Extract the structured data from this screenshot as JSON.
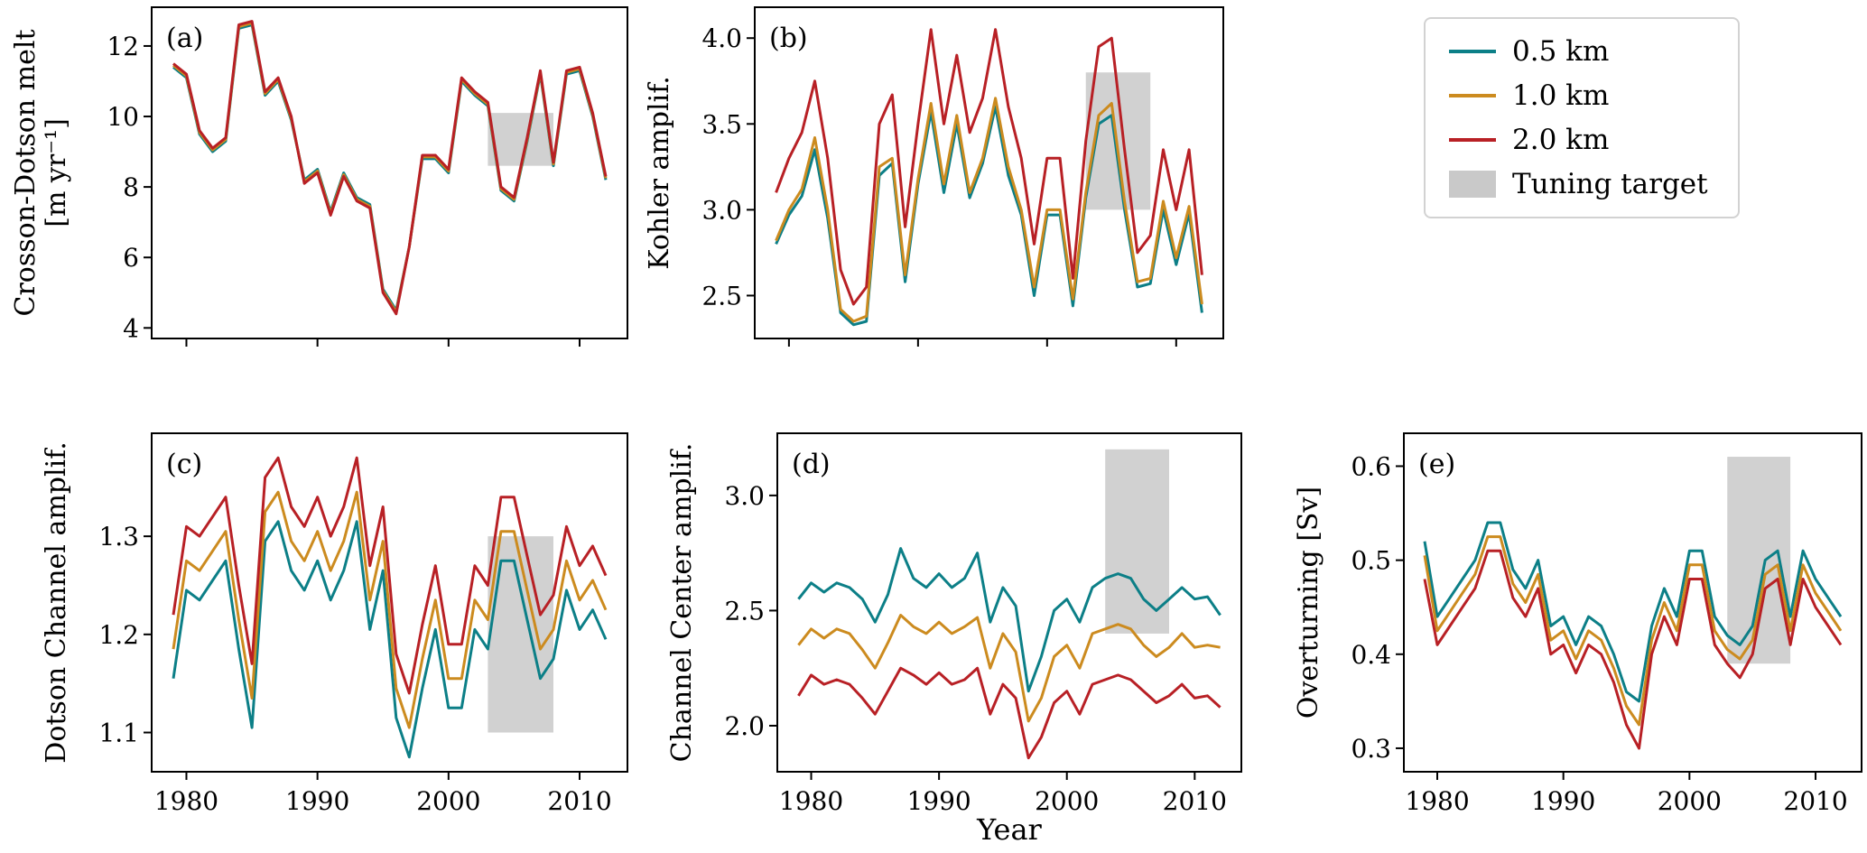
{
  "figure": {
    "xlabel": "Year",
    "background": "#ffffff",
    "legend": {
      "entries": [
        {
          "label": "0.5 km",
          "color": "#0c7f87"
        },
        {
          "label": "1.0 km",
          "color": "#cc8b1f"
        },
        {
          "label": "2.0 km",
          "color": "#b82025"
        }
      ],
      "tuning": {
        "label": "Tuning target",
        "color": "#c9c9c9"
      }
    }
  },
  "chart_data": [
    {
      "id": "a",
      "type": "line",
      "panel_label": "(a)",
      "ylabel_lines": [
        "Crosson-Dotson melt",
        "[m yr⁻¹]"
      ],
      "x": [
        1979,
        1980,
        1981,
        1982,
        1983,
        1984,
        1985,
        1986,
        1987,
        1988,
        1989,
        1990,
        1991,
        1992,
        1993,
        1994,
        1995,
        1996,
        1997,
        1998,
        1999,
        2000,
        2001,
        2002,
        2003,
        2004,
        2005,
        2006,
        2007,
        2008,
        2009,
        2010,
        2011,
        2012
      ],
      "xlim": [
        1977.35,
        2013.65
      ],
      "ylim": [
        3.7,
        13.1
      ],
      "xticks": [
        1980,
        1990,
        2000,
        2010
      ],
      "xtick_labels": [
        "1980",
        "1990",
        "2000",
        "2010"
      ],
      "xtick_labels_visible": false,
      "yticks": [
        4,
        6,
        8,
        10,
        12
      ],
      "ytick_labels": [
        "4",
        "6",
        "8",
        "10",
        "12"
      ],
      "series": [
        {
          "name": "0.5 km",
          "color": "#0c7f87",
          "values": [
            11.4,
            11.1,
            9.5,
            9.0,
            9.3,
            12.5,
            12.6,
            10.6,
            11.0,
            9.9,
            8.2,
            8.5,
            7.3,
            8.4,
            7.7,
            7.5,
            5.1,
            4.5,
            6.3,
            8.8,
            8.8,
            8.4,
            11.0,
            10.6,
            10.3,
            7.9,
            7.6,
            9.3,
            11.2,
            8.6,
            11.2,
            11.3,
            10.0,
            8.2
          ]
        },
        {
          "name": "1.0 km",
          "color": "#cc8b1f",
          "values": [
            11.45,
            11.15,
            9.55,
            9.05,
            9.35,
            12.55,
            12.65,
            10.65,
            11.05,
            9.95,
            8.15,
            8.45,
            7.25,
            8.35,
            7.65,
            7.45,
            5.05,
            4.45,
            6.3,
            8.85,
            8.85,
            8.45,
            11.05,
            10.65,
            10.35,
            7.95,
            7.65,
            9.35,
            11.25,
            8.65,
            11.25,
            11.35,
            10.05,
            8.25
          ]
        },
        {
          "name": "2.0 km",
          "color": "#b82025",
          "values": [
            11.5,
            11.2,
            9.6,
            9.1,
            9.4,
            12.6,
            12.7,
            10.7,
            11.1,
            10.0,
            8.1,
            8.4,
            7.2,
            8.3,
            7.6,
            7.4,
            5.0,
            4.4,
            6.3,
            8.9,
            8.9,
            8.5,
            11.1,
            10.7,
            10.4,
            8.0,
            7.7,
            9.4,
            11.3,
            8.7,
            11.3,
            11.4,
            10.1,
            8.3
          ]
        }
      ],
      "tuning_target": {
        "x": [
          2003,
          2008
        ],
        "y": [
          8.6,
          10.1
        ]
      }
    },
    {
      "id": "b",
      "type": "line",
      "panel_label": "(b)",
      "ylabel_lines": [
        "Kohler amplif."
      ],
      "x": [
        1979,
        1980,
        1981,
        1982,
        1983,
        1984,
        1985,
        1986,
        1987,
        1988,
        1989,
        1990,
        1991,
        1992,
        1993,
        1994,
        1995,
        1996,
        1997,
        1998,
        1999,
        2000,
        2001,
        2002,
        2003,
        2004,
        2005,
        2006,
        2007,
        2008,
        2009,
        2010,
        2011,
        2012
      ],
      "xlim": [
        1977.35,
        2013.65
      ],
      "ylim": [
        2.25,
        4.18
      ],
      "xticks": [
        1980,
        1990,
        2000,
        2010
      ],
      "xtick_labels": [
        "1980",
        "1990",
        "2000",
        "2010"
      ],
      "xtick_labels_visible": false,
      "yticks": [
        2.5,
        3.0,
        3.5,
        4.0
      ],
      "ytick_labels": [
        "2.5",
        "3.0",
        "3.5",
        "4.0"
      ],
      "series": [
        {
          "name": "0.5 km",
          "color": "#0c7f87",
          "values": [
            2.8,
            2.97,
            3.08,
            3.35,
            2.95,
            2.4,
            2.33,
            2.35,
            3.2,
            3.27,
            2.58,
            3.15,
            3.57,
            3.1,
            3.5,
            3.07,
            3.27,
            3.6,
            3.2,
            2.97,
            2.5,
            2.97,
            2.97,
            2.44,
            3.07,
            3.5,
            3.55,
            3.0,
            2.55,
            2.57,
            3.0,
            2.68,
            2.98,
            2.4
          ]
        },
        {
          "name": "1.0 km",
          "color": "#cc8b1f",
          "values": [
            2.82,
            3.0,
            3.12,
            3.42,
            3.0,
            2.42,
            2.35,
            2.38,
            3.25,
            3.3,
            2.62,
            3.18,
            3.62,
            3.15,
            3.55,
            3.1,
            3.3,
            3.65,
            3.25,
            3.0,
            2.55,
            3.0,
            3.0,
            2.48,
            3.1,
            3.55,
            3.62,
            3.05,
            2.58,
            2.6,
            3.05,
            2.72,
            3.02,
            2.45
          ]
        },
        {
          "name": "2.0 km",
          "color": "#b82025",
          "values": [
            3.1,
            3.3,
            3.45,
            3.75,
            3.3,
            2.65,
            2.45,
            2.55,
            3.5,
            3.67,
            2.9,
            3.5,
            4.05,
            3.5,
            3.9,
            3.45,
            3.65,
            4.05,
            3.6,
            3.3,
            2.8,
            3.3,
            3.3,
            2.6,
            3.4,
            3.95,
            4.0,
            3.35,
            2.75,
            2.85,
            3.35,
            3.0,
            3.35,
            2.62
          ]
        }
      ],
      "tuning_target": {
        "x": [
          2003,
          2008
        ],
        "y": [
          3.0,
          3.8
        ]
      }
    },
    {
      "id": "c",
      "type": "line",
      "panel_label": "(c)",
      "ylabel_lines": [
        "Dotson Channel amplif."
      ],
      "x": [
        1979,
        1980,
        1981,
        1982,
        1983,
        1984,
        1985,
        1986,
        1987,
        1988,
        1989,
        1990,
        1991,
        1992,
        1993,
        1994,
        1995,
        1996,
        1997,
        1998,
        1999,
        2000,
        2001,
        2002,
        2003,
        2004,
        2005,
        2006,
        2007,
        2008,
        2009,
        2010,
        2011,
        2012
      ],
      "xlim": [
        1977.35,
        2013.65
      ],
      "ylim": [
        1.06,
        1.405
      ],
      "xticks": [
        1980,
        1990,
        2000,
        2010
      ],
      "xtick_labels": [
        "1980",
        "1990",
        "2000",
        "2010"
      ],
      "xtick_labels_visible": true,
      "yticks": [
        1.1,
        1.2,
        1.3
      ],
      "ytick_labels": [
        "1.1",
        "1.2",
        "1.3"
      ],
      "series": [
        {
          "name": "0.5 km",
          "color": "#0c7f87",
          "values": [
            1.155,
            1.245,
            1.235,
            1.255,
            1.275,
            1.185,
            1.105,
            1.295,
            1.315,
            1.265,
            1.245,
            1.275,
            1.235,
            1.265,
            1.315,
            1.205,
            1.265,
            1.115,
            1.075,
            1.145,
            1.205,
            1.125,
            1.125,
            1.205,
            1.185,
            1.275,
            1.275,
            1.215,
            1.155,
            1.175,
            1.245,
            1.205,
            1.225,
            1.195
          ]
        },
        {
          "name": "1.0 km",
          "color": "#cc8b1f",
          "values": [
            1.185,
            1.275,
            1.265,
            1.285,
            1.305,
            1.215,
            1.135,
            1.325,
            1.345,
            1.295,
            1.275,
            1.305,
            1.265,
            1.295,
            1.345,
            1.235,
            1.295,
            1.145,
            1.105,
            1.175,
            1.235,
            1.155,
            1.155,
            1.235,
            1.215,
            1.305,
            1.305,
            1.245,
            1.185,
            1.205,
            1.275,
            1.235,
            1.255,
            1.225
          ]
        },
        {
          "name": "2.0 km",
          "color": "#b82025",
          "values": [
            1.22,
            1.31,
            1.3,
            1.32,
            1.34,
            1.25,
            1.17,
            1.36,
            1.38,
            1.33,
            1.31,
            1.34,
            1.3,
            1.33,
            1.38,
            1.27,
            1.33,
            1.18,
            1.14,
            1.21,
            1.27,
            1.19,
            1.19,
            1.27,
            1.25,
            1.34,
            1.34,
            1.28,
            1.22,
            1.24,
            1.31,
            1.27,
            1.29,
            1.26
          ]
        }
      ],
      "tuning_target": {
        "x": [
          2003,
          2008
        ],
        "y": [
          1.1,
          1.3
        ]
      }
    },
    {
      "id": "d",
      "type": "line",
      "panel_label": "(d)",
      "ylabel_lines": [
        "Channel Center amplif."
      ],
      "x": [
        1979,
        1980,
        1981,
        1982,
        1983,
        1984,
        1985,
        1986,
        1987,
        1988,
        1989,
        1990,
        1991,
        1992,
        1993,
        1994,
        1995,
        1996,
        1997,
        1998,
        1999,
        2000,
        2001,
        2002,
        2003,
        2004,
        2005,
        2006,
        2007,
        2008,
        2009,
        2010,
        2011,
        2012
      ],
      "xlim": [
        1977.35,
        2013.65
      ],
      "ylim": [
        1.8,
        3.27
      ],
      "xticks": [
        1980,
        1990,
        2000,
        2010
      ],
      "xtick_labels": [
        "1980",
        "1990",
        "2000",
        "2010"
      ],
      "xtick_labels_visible": true,
      "yticks": [
        2.0,
        2.5,
        3.0
      ],
      "ytick_labels": [
        "2.0",
        "2.5",
        "3.0"
      ],
      "series": [
        {
          "name": "0.5 km",
          "color": "#0c7f87",
          "values": [
            2.55,
            2.62,
            2.58,
            2.62,
            2.6,
            2.55,
            2.45,
            2.57,
            2.77,
            2.64,
            2.6,
            2.66,
            2.6,
            2.64,
            2.75,
            2.45,
            2.6,
            2.52,
            2.15,
            2.3,
            2.5,
            2.55,
            2.45,
            2.6,
            2.64,
            2.66,
            2.64,
            2.55,
            2.5,
            2.55,
            2.6,
            2.55,
            2.56,
            2.48
          ]
        },
        {
          "name": "1.0 km",
          "color": "#cc8b1f",
          "values": [
            2.35,
            2.42,
            2.38,
            2.42,
            2.4,
            2.33,
            2.25,
            2.36,
            2.48,
            2.43,
            2.4,
            2.45,
            2.4,
            2.43,
            2.47,
            2.25,
            2.4,
            2.32,
            2.02,
            2.12,
            2.3,
            2.35,
            2.25,
            2.4,
            2.42,
            2.44,
            2.42,
            2.35,
            2.3,
            2.34,
            2.4,
            2.34,
            2.35,
            2.34
          ]
        },
        {
          "name": "2.0 km",
          "color": "#b82025",
          "values": [
            2.13,
            2.22,
            2.18,
            2.2,
            2.18,
            2.12,
            2.05,
            2.15,
            2.25,
            2.22,
            2.18,
            2.23,
            2.18,
            2.2,
            2.25,
            2.05,
            2.18,
            2.12,
            1.86,
            1.95,
            2.1,
            2.15,
            2.05,
            2.18,
            2.2,
            2.22,
            2.2,
            2.15,
            2.1,
            2.13,
            2.18,
            2.12,
            2.13,
            2.08
          ]
        }
      ],
      "tuning_target": {
        "x": [
          2003,
          2008
        ],
        "y": [
          2.4,
          3.2
        ]
      }
    },
    {
      "id": "e",
      "type": "line",
      "panel_label": "(e)",
      "ylabel_lines": [
        "Overturning [Sv]"
      ],
      "x": [
        1979,
        1980,
        1981,
        1982,
        1983,
        1984,
        1985,
        1986,
        1987,
        1988,
        1989,
        1990,
        1991,
        1992,
        1993,
        1994,
        1995,
        1996,
        1997,
        1998,
        1999,
        2000,
        2001,
        2002,
        2003,
        2004,
        2005,
        2006,
        2007,
        2008,
        2009,
        2010,
        2011,
        2012
      ],
      "xlim": [
        1977.35,
        2013.65
      ],
      "ylim": [
        0.275,
        0.635
      ],
      "xticks": [
        1980,
        1990,
        2000,
        2010
      ],
      "xtick_labels": [
        "1980",
        "1990",
        "2000",
        "2010"
      ],
      "xtick_labels_visible": true,
      "yticks": [
        0.3,
        0.4,
        0.5,
        0.6
      ],
      "ytick_labels": [
        "0.3",
        "0.4",
        "0.5",
        "0.6"
      ],
      "series": [
        {
          "name": "0.5 km",
          "color": "#0c7f87",
          "values": [
            0.52,
            0.44,
            0.46,
            0.48,
            0.5,
            0.54,
            0.54,
            0.49,
            0.47,
            0.5,
            0.43,
            0.44,
            0.41,
            0.44,
            0.43,
            0.4,
            0.36,
            0.35,
            0.43,
            0.47,
            0.44,
            0.51,
            0.51,
            0.44,
            0.42,
            0.41,
            0.43,
            0.5,
            0.51,
            0.44,
            0.51,
            0.48,
            0.46,
            0.44
          ]
        },
        {
          "name": "1.0 km",
          "color": "#cc8b1f",
          "values": [
            0.505,
            0.425,
            0.445,
            0.465,
            0.485,
            0.525,
            0.525,
            0.475,
            0.455,
            0.485,
            0.415,
            0.425,
            0.395,
            0.425,
            0.415,
            0.385,
            0.345,
            0.325,
            0.415,
            0.455,
            0.425,
            0.495,
            0.495,
            0.425,
            0.405,
            0.395,
            0.415,
            0.485,
            0.495,
            0.425,
            0.495,
            0.465,
            0.445,
            0.425
          ]
        },
        {
          "name": "2.0 km",
          "color": "#b82025",
          "values": [
            0.48,
            0.41,
            0.43,
            0.45,
            0.47,
            0.51,
            0.51,
            0.46,
            0.44,
            0.47,
            0.4,
            0.41,
            0.38,
            0.41,
            0.4,
            0.37,
            0.325,
            0.3,
            0.4,
            0.44,
            0.41,
            0.48,
            0.48,
            0.41,
            0.39,
            0.375,
            0.4,
            0.47,
            0.48,
            0.41,
            0.48,
            0.45,
            0.43,
            0.41
          ]
        }
      ],
      "tuning_target": {
        "x": [
          2003,
          2008
        ],
        "y": [
          0.39,
          0.61
        ]
      }
    }
  ]
}
